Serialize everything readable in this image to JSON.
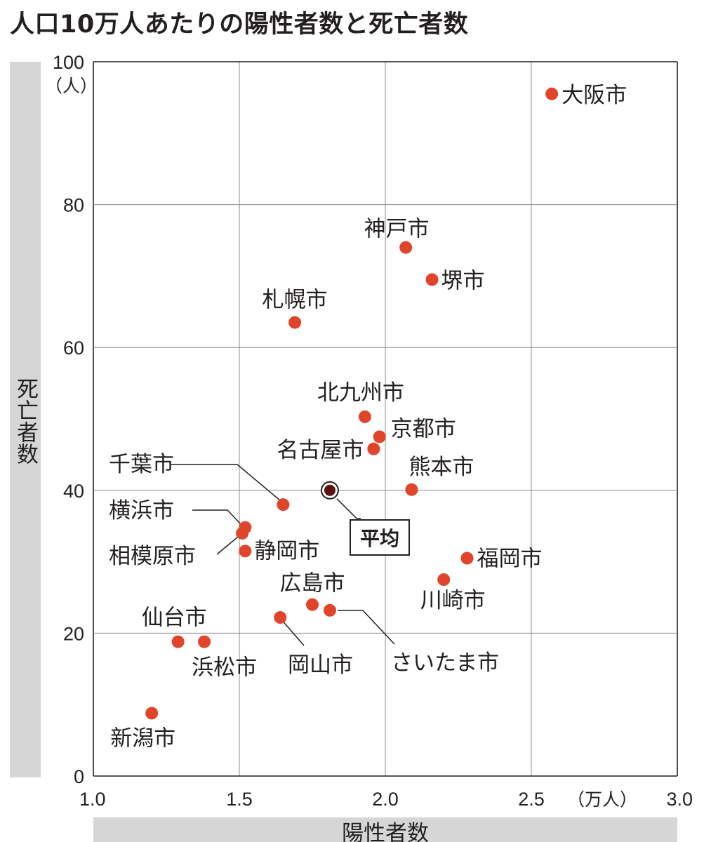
{
  "title": "人口10万人あたりの陽性者数と死亡者数",
  "chart_data": {
    "type": "scatter",
    "title": "人口10万人あたりの陽性者数と死亡者数",
    "xlabel": "陽性者数",
    "ylabel": "死亡者数",
    "x_unit": "（万人）",
    "y_unit": "（人）",
    "xlim": [
      1.0,
      3.0
    ],
    "ylim": [
      0,
      100
    ],
    "x_ticks": [
      "1.0",
      "1.5",
      "2.0",
      "2.5",
      "3.0"
    ],
    "y_ticks": [
      "0",
      "20",
      "40",
      "60",
      "80",
      "100"
    ],
    "grid": true,
    "point_color": "#e0442a",
    "average_color": "#5a1410",
    "points": [
      {
        "name": "大阪市",
        "x": 2.57,
        "y": 95.5
      },
      {
        "name": "神戸市",
        "x": 2.07,
        "y": 74
      },
      {
        "name": "堺市",
        "x": 2.16,
        "y": 69.5
      },
      {
        "name": "札幌市",
        "x": 1.69,
        "y": 63.5
      },
      {
        "name": "北九州市",
        "x": 1.93,
        "y": 50.3
      },
      {
        "name": "京都市",
        "x": 1.98,
        "y": 47.5
      },
      {
        "name": "名古屋市",
        "x": 1.96,
        "y": 45.8
      },
      {
        "name": "熊本市",
        "x": 2.09,
        "y": 40.1
      },
      {
        "name": "千葉市",
        "x": 1.65,
        "y": 38
      },
      {
        "name": "横浜市",
        "x": 1.52,
        "y": 34.8
      },
      {
        "name": "相模原市",
        "x": 1.51,
        "y": 34
      },
      {
        "name": "静岡市",
        "x": 1.52,
        "y": 31.5
      },
      {
        "name": "福岡市",
        "x": 2.28,
        "y": 30.5
      },
      {
        "name": "川崎市",
        "x": 2.2,
        "y": 27.5
      },
      {
        "name": "広島市",
        "x": 1.75,
        "y": 24
      },
      {
        "name": "さいたま市",
        "x": 1.81,
        "y": 23.2
      },
      {
        "name": "岡山市",
        "x": 1.64,
        "y": 22.2
      },
      {
        "name": "仙台市",
        "x": 1.29,
        "y": 18.8
      },
      {
        "name": "浜松市",
        "x": 1.38,
        "y": 18.8
      },
      {
        "name": "新潟市",
        "x": 1.2,
        "y": 8.8
      }
    ],
    "average": {
      "name": "平均",
      "x": 1.81,
      "y": 40
    }
  }
}
